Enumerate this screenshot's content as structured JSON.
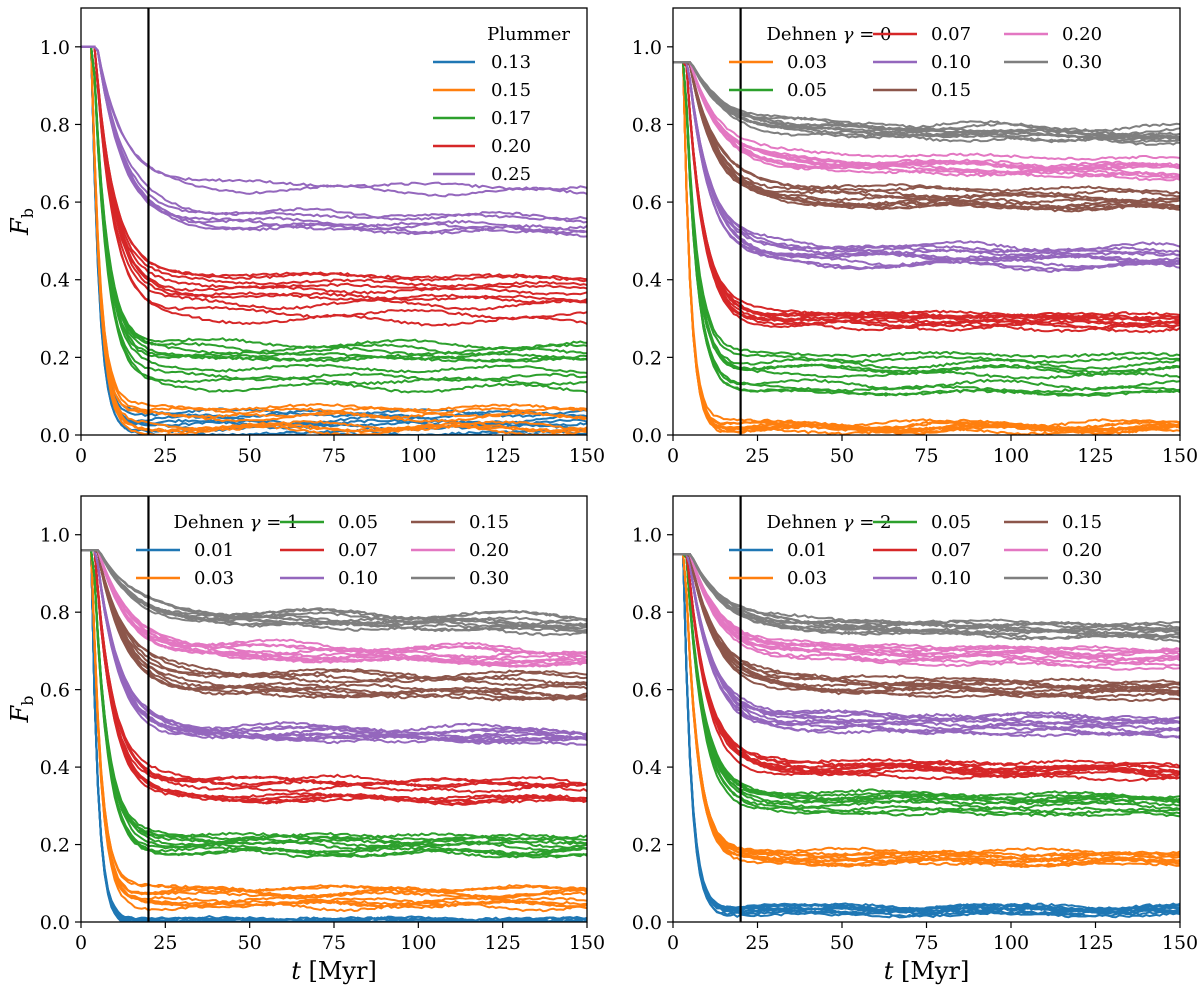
{
  "chart_data": [
    {
      "type": "line",
      "title": "",
      "legend_title": "Plummer",
      "legend_position": "top-right",
      "legend_columns": 1,
      "xlabel": "t [Myr]",
      "ylabel": "F_b",
      "xlim": [
        0,
        150
      ],
      "ylim": [
        0.0,
        1.1
      ],
      "xticks": [
        "0",
        "25",
        "50",
        "75",
        "100",
        "125",
        "150"
      ],
      "yticks": [
        "0.0",
        "0.2",
        "0.4",
        "0.6",
        "0.8",
        "1.0"
      ],
      "vline_x": 20,
      "x": [
        0,
        2,
        4,
        6,
        8,
        10,
        12,
        15,
        20,
        25,
        35,
        50,
        70,
        90,
        110,
        130,
        150
      ],
      "series": [
        {
          "name": "0.13",
          "color": "#1f77b4",
          "runs": 8,
          "plateau": 0.03,
          "f0": 1.0,
          "spread": 0.03
        },
        {
          "name": "0.15",
          "color": "#ff7f0e",
          "runs": 8,
          "plateau": 0.05,
          "f0": 1.0,
          "spread": 0.04
        },
        {
          "name": "0.17",
          "color": "#2ca02c",
          "runs": 10,
          "plateau": 0.21,
          "f0": 1.0,
          "spread": 0.09
        },
        {
          "name": "0.20",
          "color": "#d62728",
          "runs": 10,
          "plateau": 0.37,
          "f0": 1.0,
          "spread": 0.07
        },
        {
          "name": "0.25",
          "color": "#9467bd",
          "runs": 8,
          "plateau": 0.6,
          "f0": 1.0,
          "spread": 0.06
        }
      ]
    },
    {
      "type": "line",
      "title": "",
      "legend_title": "Dehnen γ = 0",
      "legend_position": "top-right",
      "legend_columns": 3,
      "xlabel": "t [Myr]",
      "ylabel": "F_b",
      "xlim": [
        0,
        150
      ],
      "ylim": [
        0.0,
        1.1
      ],
      "xticks": [
        "0",
        "25",
        "50",
        "75",
        "100",
        "125",
        "150"
      ],
      "yticks": [
        "0.0",
        "0.2",
        "0.4",
        "0.6",
        "0.8",
        "1.0"
      ],
      "vline_x": 20,
      "x": [
        0,
        2,
        4,
        6,
        8,
        10,
        12,
        15,
        20,
        25,
        35,
        50,
        70,
        90,
        110,
        130,
        150
      ],
      "series": [
        {
          "name": "0.03",
          "color": "#ff7f0e",
          "runs": 10,
          "plateau": 0.02,
          "f0": 0.96,
          "spread": 0.01
        },
        {
          "name": "0.05",
          "color": "#2ca02c",
          "runs": 10,
          "plateau": 0.16,
          "f0": 0.96,
          "spread": 0.05
        },
        {
          "name": "0.07",
          "color": "#d62728",
          "runs": 10,
          "plateau": 0.31,
          "f0": 0.96,
          "spread": 0.03
        },
        {
          "name": "0.10",
          "color": "#9467bd",
          "runs": 10,
          "plateau": 0.47,
          "f0": 0.96,
          "spread": 0.03
        },
        {
          "name": "0.15",
          "color": "#8c564b",
          "runs": 10,
          "plateau": 0.62,
          "f0": 0.96,
          "spread": 0.03
        },
        {
          "name": "0.20",
          "color": "#e377c2",
          "runs": 10,
          "plateau": 0.71,
          "f0": 0.96,
          "spread": 0.02
        },
        {
          "name": "0.30",
          "color": "#7f7f7f",
          "runs": 10,
          "plateau": 0.79,
          "f0": 0.96,
          "spread": 0.02
        }
      ]
    },
    {
      "type": "line",
      "title": "",
      "legend_title": "Dehnen γ = 1",
      "legend_position": "top-right",
      "legend_columns": 3,
      "xlabel": "t [Myr]",
      "ylabel": "F_b",
      "xlim": [
        0,
        150
      ],
      "ylim": [
        0.0,
        1.1
      ],
      "xticks": [
        "0",
        "25",
        "50",
        "75",
        "100",
        "125",
        "150"
      ],
      "yticks": [
        "0.0",
        "0.2",
        "0.4",
        "0.6",
        "0.8",
        "1.0"
      ],
      "vline_x": 20,
      "x": [
        0,
        2,
        4,
        6,
        8,
        10,
        12,
        15,
        20,
        25,
        35,
        50,
        70,
        90,
        110,
        130,
        150
      ],
      "series": [
        {
          "name": "0.01",
          "color": "#1f77b4",
          "runs": 10,
          "plateau": 0.0,
          "f0": 0.96,
          "spread": 0.005
        },
        {
          "name": "0.03",
          "color": "#ff7f0e",
          "runs": 10,
          "plateau": 0.07,
          "f0": 0.96,
          "spread": 0.03
        },
        {
          "name": "0.05",
          "color": "#2ca02c",
          "runs": 10,
          "plateau": 0.21,
          "f0": 0.96,
          "spread": 0.03
        },
        {
          "name": "0.07",
          "color": "#d62728",
          "runs": 10,
          "plateau": 0.35,
          "f0": 0.96,
          "spread": 0.03
        },
        {
          "name": "0.10",
          "color": "#9467bd",
          "runs": 10,
          "plateau": 0.49,
          "f0": 0.96,
          "spread": 0.02
        },
        {
          "name": "0.15",
          "color": "#8c564b",
          "runs": 10,
          "plateau": 0.62,
          "f0": 0.96,
          "spread": 0.03
        },
        {
          "name": "0.20",
          "color": "#e377c2",
          "runs": 10,
          "plateau": 0.71,
          "f0": 0.96,
          "spread": 0.02
        },
        {
          "name": "0.30",
          "color": "#7f7f7f",
          "runs": 10,
          "plateau": 0.79,
          "f0": 0.96,
          "spread": 0.015
        }
      ]
    },
    {
      "type": "line",
      "title": "",
      "legend_title": "Dehnen γ = 2",
      "legend_position": "top-right",
      "legend_columns": 3,
      "xlabel": "t [Myr]",
      "ylabel": "F_b",
      "xlim": [
        0,
        150
      ],
      "ylim": [
        0.0,
        1.1
      ],
      "xticks": [
        "0",
        "25",
        "50",
        "75",
        "100",
        "125",
        "150"
      ],
      "yticks": [
        "0.0",
        "0.2",
        "0.4",
        "0.6",
        "0.8",
        "1.0"
      ],
      "vline_x": 20,
      "x": [
        0,
        2,
        4,
        6,
        8,
        10,
        12,
        15,
        20,
        25,
        35,
        50,
        70,
        90,
        110,
        130,
        150
      ],
      "series": [
        {
          "name": "0.01",
          "color": "#1f77b4",
          "runs": 10,
          "plateau": 0.03,
          "f0": 0.95,
          "spread": 0.01
        },
        {
          "name": "0.03",
          "color": "#ff7f0e",
          "runs": 10,
          "plateau": 0.17,
          "f0": 0.95,
          "spread": 0.015
        },
        {
          "name": "0.05",
          "color": "#2ca02c",
          "runs": 10,
          "plateau": 0.31,
          "f0": 0.95,
          "spread": 0.03
        },
        {
          "name": "0.07",
          "color": "#d62728",
          "runs": 10,
          "plateau": 0.4,
          "f0": 0.95,
          "spread": 0.02
        },
        {
          "name": "0.10",
          "color": "#9467bd",
          "runs": 10,
          "plateau": 0.52,
          "f0": 0.95,
          "spread": 0.02
        },
        {
          "name": "0.15",
          "color": "#8c564b",
          "runs": 10,
          "plateau": 0.62,
          "f0": 0.95,
          "spread": 0.02
        },
        {
          "name": "0.20",
          "color": "#e377c2",
          "runs": 10,
          "plateau": 0.7,
          "f0": 0.95,
          "spread": 0.02
        },
        {
          "name": "0.30",
          "color": "#7f7f7f",
          "runs": 10,
          "plateau": 0.77,
          "f0": 0.95,
          "spread": 0.015
        }
      ]
    }
  ]
}
